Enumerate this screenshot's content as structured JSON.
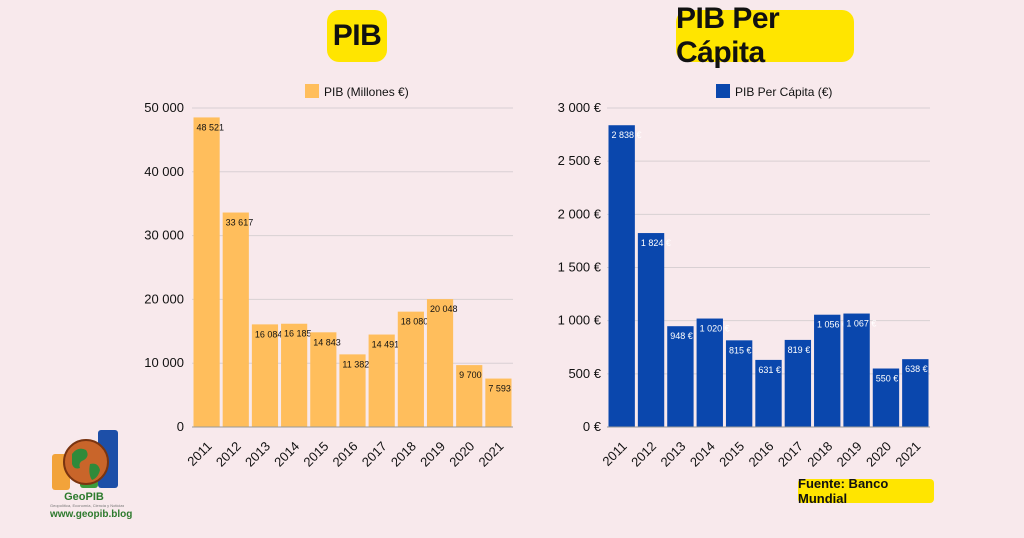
{
  "titles": {
    "left": "PIB",
    "right": "PIB Per Cápita"
  },
  "source": "Fuente: Banco Mundial",
  "logo": {
    "name": "GeoPIB",
    "tagline": "Geopolítica, Economía, Ciencia y Noticias Mundiales",
    "url": "www.geopib.blog"
  },
  "colors": {
    "left_bar": "#ffbe5c",
    "right_bar": "#0a47ad",
    "badge": "#ffe500"
  },
  "chart_data": [
    {
      "type": "bar",
      "title": "PIB",
      "legend": "PIB (Millones €)",
      "legend_position": "top",
      "categories": [
        "2011",
        "2012",
        "2013",
        "2014",
        "2015",
        "2016",
        "2017",
        "2018",
        "2019",
        "2020",
        "2021"
      ],
      "values": [
        48521,
        33617,
        16084,
        16185,
        14843,
        11382,
        14491,
        18080,
        20048,
        9700,
        7593
      ],
      "value_labels": [
        "48 521",
        "33 617",
        "16 084",
        "16 185",
        "14 843",
        "11 382",
        "14 491",
        "18 080",
        "20 048",
        "9 700",
        "7 593"
      ],
      "ylim": [
        0,
        50000
      ],
      "yticks": [
        0,
        10000,
        20000,
        30000,
        40000,
        50000
      ],
      "ytick_labels": [
        "0",
        "10 000",
        "20 000",
        "30 000",
        "40 000",
        "50 000"
      ],
      "grid": true
    },
    {
      "type": "bar",
      "title": "PIB Per Cápita",
      "legend": "PIB Per Cápita (€)",
      "legend_position": "top",
      "categories": [
        "2011",
        "2012",
        "2013",
        "2014",
        "2015",
        "2016",
        "2017",
        "2018",
        "2019",
        "2020",
        "2021"
      ],
      "values": [
        2838,
        1824,
        948,
        1020,
        815,
        631,
        819,
        1056,
        1067,
        550,
        638
      ],
      "value_labels": [
        "2 838 €",
        "1 824 €",
        "948 €",
        "1 020 €",
        "815 €",
        "631 €",
        "819 €",
        "1 056 €",
        "1 067 €",
        "550 €",
        "638 €"
      ],
      "ylim": [
        0,
        3000
      ],
      "yticks": [
        0,
        500,
        1000,
        1500,
        2000,
        2500,
        3000
      ],
      "ytick_labels": [
        "0 €",
        "500 €",
        "1 000 €",
        "1 500 €",
        "2 000 €",
        "2 500 €",
        "3 000 €"
      ],
      "grid": true
    }
  ]
}
